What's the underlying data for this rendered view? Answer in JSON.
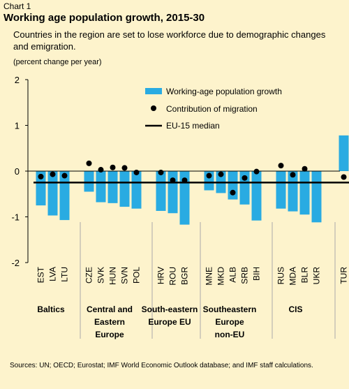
{
  "header": {
    "chart_label": "Chart 1",
    "title": "Working age population growth, 2015-30",
    "subtitle": "Countries in the region are set to lose workforce due to demographic changes and emigration.",
    "unit": "(percent change per year)"
  },
  "source": "Sources:  UN; OECD; Eurostat; IMF World Economic Outlook database; and IMF staff calculations.",
  "colors": {
    "bar": "#29abe2",
    "median": "#000000",
    "migration": "#000000",
    "divider": "#aaaaaa",
    "background": "#fdf3cc"
  },
  "chart_data": {
    "type": "bar",
    "categories": [
      "EST",
      "LVA",
      "LTU",
      "CZE",
      "SVK",
      "HUN",
      "SVN",
      "POL",
      "HRV",
      "ROU",
      "BGR",
      "MNE",
      "MKD",
      "ALB",
      "SRB",
      "BIH",
      "RUS",
      "MDA",
      "BLR",
      "UKR",
      "TUR"
    ],
    "groups": [
      {
        "label": "Baltics",
        "members": [
          "EST",
          "LVA",
          "LTU"
        ]
      },
      {
        "label": "Central and Eastern Europe",
        "members": [
          "CZE",
          "SVK",
          "HUN",
          "SVN",
          "POL"
        ]
      },
      {
        "label": "South-eastern Europe EU",
        "members": [
          "HRV",
          "ROU",
          "BGR"
        ]
      },
      {
        "label": "Southeastern Europe non-EU",
        "members": [
          "MNE",
          "MKD",
          "ALB",
          "SRB",
          "BIH"
        ]
      },
      {
        "label": "CIS",
        "members": [
          "RUS",
          "MDA",
          "BLR",
          "UKR"
        ]
      },
      {
        "label": "",
        "members": [
          "TUR"
        ]
      }
    ],
    "series": [
      {
        "name": "Working-age population growth",
        "type": "bar",
        "values": [
          -0.75,
          -0.97,
          -1.07,
          -0.45,
          -0.68,
          -0.7,
          -0.78,
          -0.82,
          -0.87,
          -0.92,
          -1.17,
          -0.42,
          -0.48,
          -0.62,
          -0.73,
          -1.08,
          -0.82,
          -0.88,
          -0.95,
          -1.12,
          0.78
        ]
      },
      {
        "name": "Contribution of migration",
        "type": "scatter",
        "values": [
          -0.12,
          -0.07,
          -0.1,
          0.17,
          0.03,
          0.08,
          0.07,
          -0.03,
          -0.03,
          -0.2,
          -0.2,
          -0.1,
          -0.07,
          -0.47,
          -0.15,
          -0.01,
          0.12,
          -0.08,
          0.05,
          null,
          -0.13
        ]
      },
      {
        "name": "EU-15 median",
        "type": "line",
        "value": -0.25
      }
    ],
    "yticks": [
      -2,
      -1,
      0,
      1,
      2
    ],
    "ylim": [
      -2,
      2
    ],
    "legend_position": "top-right",
    "grid": false
  }
}
